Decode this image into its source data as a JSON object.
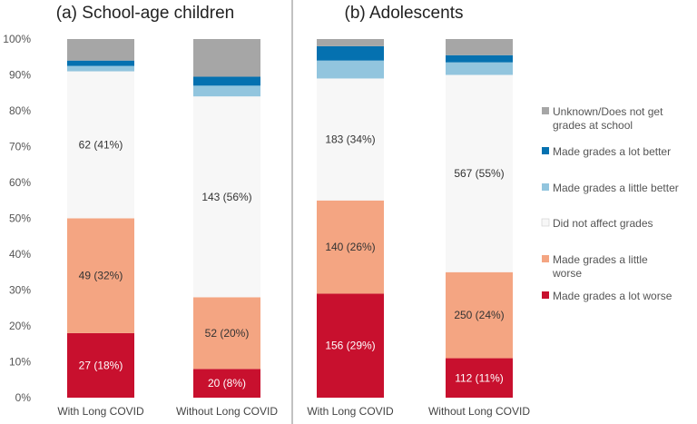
{
  "chart_data": {
    "type": "bar",
    "stacked": true,
    "ylim": [
      0,
      100
    ],
    "yticks": [
      "0%",
      "10%",
      "20%",
      "30%",
      "40%",
      "50%",
      "60%",
      "70%",
      "80%",
      "90%",
      "100%"
    ],
    "series_names": [
      "Made grades a lot worse",
      "Made grades a little worse",
      "Did not affect grades",
      "Made grades a little better",
      "Made grades a lot better",
      "Unknown/Does not get grades at school"
    ],
    "colors": [
      "#c8102e",
      "#f4a582",
      "#f7f7f7",
      "#92c5de",
      "#0571b0",
      "#a6a6a6"
    ],
    "legend": {
      "position": "right",
      "items": [
        {
          "label": "Unknown/Does not get grades at school",
          "color": "#a6a6a6"
        },
        {
          "label": "Made grades a lot better",
          "color": "#0571b0"
        },
        {
          "label": "Made grades a little better",
          "color": "#92c5de"
        },
        {
          "label": "Did not affect grades",
          "color": "#f7f7f7"
        },
        {
          "label": "Made grades a little worse",
          "color": "#f4a582"
        },
        {
          "label": "Made grades a lot worse",
          "color": "#c8102e"
        }
      ]
    },
    "panels": [
      {
        "title": "(a) School-age children",
        "categories": [
          "With Long COVID",
          "Without Long COVID"
        ],
        "bars": [
          {
            "values": [
              18,
              32,
              41,
              1.5,
              1.5,
              6
            ],
            "labels": [
              "27 (18%)",
              "49 (32%)",
              "62 (41%)",
              "",
              "",
              ""
            ]
          },
          {
            "values": [
              8,
              20,
              56,
              3,
              2.5,
              10.5
            ],
            "labels": [
              "20 (8%)",
              "52 (20%)",
              "143 (56%)",
              "",
              "",
              ""
            ]
          }
        ]
      },
      {
        "title": "(b) Adolescents",
        "categories": [
          "With Long COVID",
          "Without Long COVID"
        ],
        "bars": [
          {
            "values": [
              29,
              26,
              34,
              5,
              4,
              2
            ],
            "labels": [
              "156 (29%)",
              "140 (26%)",
              "183 (34%)",
              "",
              "",
              ""
            ]
          },
          {
            "values": [
              11,
              24,
              55,
              3.5,
              2,
              4.5
            ],
            "labels": [
              "112 (11%)",
              "250 (24%)",
              "567 (55%)",
              "",
              "",
              ""
            ]
          }
        ]
      }
    ]
  }
}
